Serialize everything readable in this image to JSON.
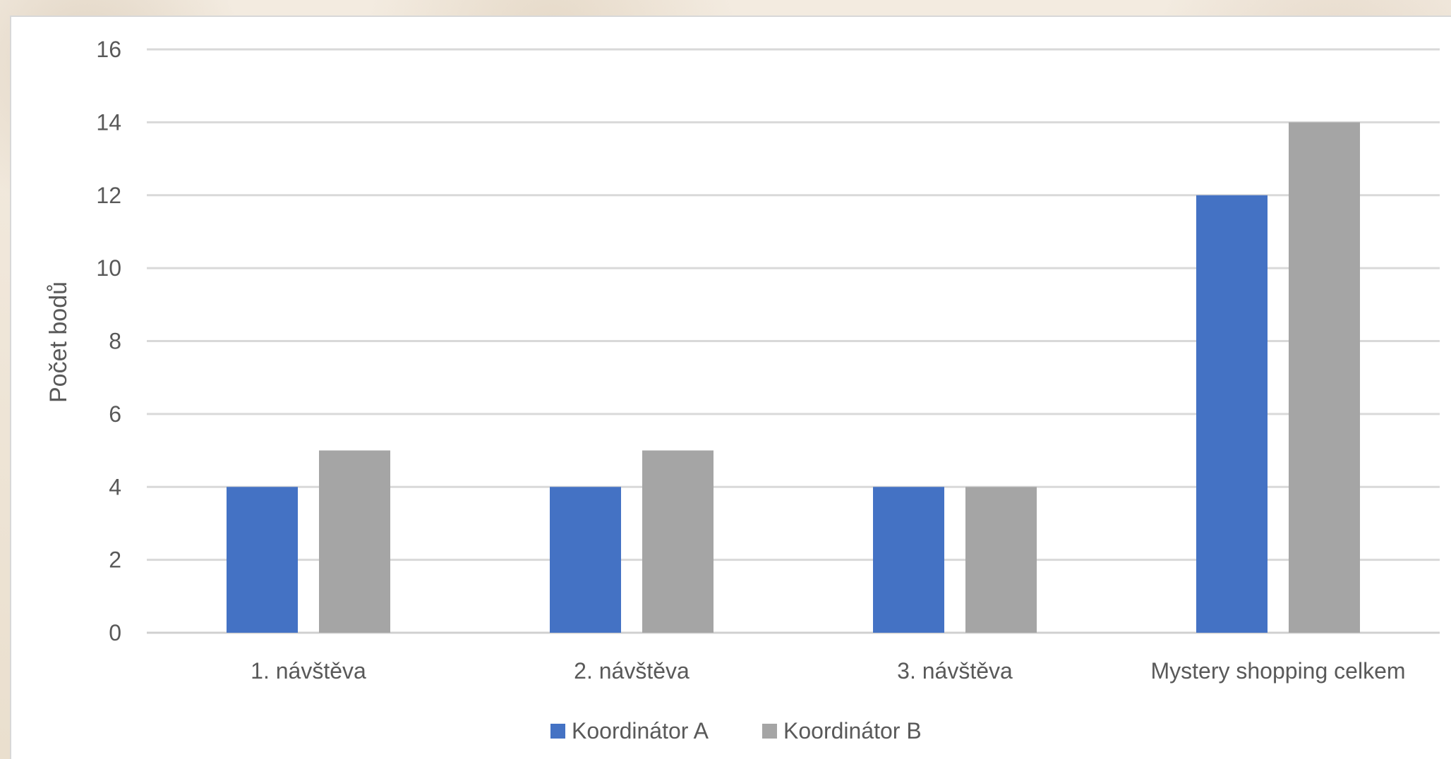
{
  "chart_data": {
    "type": "bar",
    "categories": [
      "1. návštěva",
      "2. návštěva",
      "3. návštěva",
      "Mystery shopping celkem"
    ],
    "series": [
      {
        "name": "Koordinátor A",
        "values": [
          4,
          4,
          4,
          12
        ],
        "color": "#4472C4"
      },
      {
        "name": "Koordinátor B",
        "values": [
          5,
          5,
          4,
          14
        ],
        "color": "#A5A5A5"
      }
    ],
    "title": "",
    "xlabel": "",
    "ylabel": "Počet bodů",
    "ylim": [
      0,
      16
    ],
    "yticks": [
      "0",
      "2",
      "4",
      "6",
      "8",
      "10",
      "12",
      "14",
      "16"
    ],
    "grid": true,
    "legend_position": "bottom"
  }
}
